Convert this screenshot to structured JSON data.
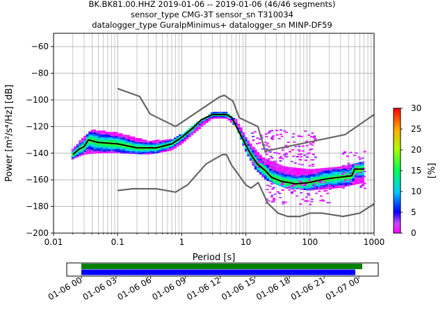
{
  "chart_data": {
    "type": "scatter",
    "title_lines": [
      "BK.BK81.00.HHZ   2019-01-06 -- 2019-01-06  (46/46 segments)",
      "sensor_type CMG-3T sensor_sn T310034",
      "datalogger_type GuralpMinimus+ datalogger_sn MINP-DF59"
    ],
    "xlabel": "Period [s]",
    "ylabel": "Power [m²/s⁴/Hz] [dB]",
    "x_scale": "log",
    "xlim": [
      0.01,
      1000
    ],
    "ylim": [
      -200,
      -50
    ],
    "x_ticks": [
      0.01,
      0.1,
      1,
      10,
      100,
      1000
    ],
    "x_tick_labels": [
      "0.01",
      "0.1",
      "1",
      "10",
      "100",
      "1000"
    ],
    "y_ticks": [
      -200,
      -180,
      -160,
      -140,
      -120,
      -100,
      -80,
      -60
    ],
    "y_tick_labels": [
      "−200",
      "−180",
      "−160",
      "−140",
      "−120",
      "−100",
      "−80",
      "−60"
    ],
    "grid": true,
    "colorbar": {
      "label": "[%]",
      "range": [
        0,
        30
      ],
      "ticks": [
        0,
        5,
        10,
        15,
        20,
        25,
        30
      ],
      "tick_labels": [
        "0",
        "5",
        "10",
        "15",
        "20",
        "25",
        "30"
      ]
    },
    "noise_model_high": [
      [
        0.1,
        -91.5
      ],
      [
        0.22,
        -97.4
      ],
      [
        0.32,
        -110.5
      ],
      [
        0.8,
        -120
      ],
      [
        3.8,
        -98
      ],
      [
        4.6,
        -96.5
      ],
      [
        6.3,
        -101
      ],
      [
        7.9,
        -113.5
      ],
      [
        15.4,
        -120
      ],
      [
        20,
        -138.5
      ],
      [
        354.8,
        -126
      ],
      [
        1000,
        -111
      ]
    ],
    "noise_model_low": [
      [
        0.1,
        -168
      ],
      [
        0.17,
        -166.7
      ],
      [
        0.4,
        -166.7
      ],
      [
        0.8,
        -169.2
      ],
      [
        1.24,
        -163.7
      ],
      [
        2.4,
        -148
      ],
      [
        4.3,
        -141.1
      ],
      [
        5,
        -141.1
      ],
      [
        6,
        -149
      ],
      [
        10,
        -163.8
      ],
      [
        12,
        -166.2
      ],
      [
        15.6,
        -162.1
      ],
      [
        21.9,
        -177.5
      ],
      [
        31.6,
        -185
      ],
      [
        45,
        -187.5
      ],
      [
        70,
        -187.5
      ],
      [
        101,
        -185
      ],
      [
        154,
        -185
      ],
      [
        328,
        -187.5
      ],
      [
        600,
        -185
      ],
      [
        1000,
        -178
      ]
    ],
    "mode_curve": [
      [
        0.02,
        -141
      ],
      [
        0.025,
        -137
      ],
      [
        0.03,
        -135
      ],
      [
        0.035,
        -130
      ],
      [
        0.05,
        -132
      ],
      [
        0.1,
        -133
      ],
      [
        0.2,
        -136
      ],
      [
        0.4,
        -136
      ],
      [
        0.7,
        -133
      ],
      [
        1.0,
        -128
      ],
      [
        1.5,
        -121
      ],
      [
        2.0,
        -115
      ],
      [
        3.0,
        -111
      ],
      [
        5.0,
        -111
      ],
      [
        6.0,
        -113
      ],
      [
        8.0,
        -125
      ],
      [
        10,
        -134
      ],
      [
        12,
        -141
      ],
      [
        15,
        -148
      ],
      [
        20,
        -153
      ],
      [
        25,
        -158
      ],
      [
        35,
        -161
      ],
      [
        60,
        -163
      ],
      [
        100,
        -162
      ],
      [
        150,
        -160
      ],
      [
        200,
        -159
      ],
      [
        300,
        -158
      ],
      [
        450,
        -157
      ],
      [
        500,
        -152
      ],
      [
        700,
        -152
      ]
    ],
    "density_band": {
      "upper": [
        [
          0.019,
          -138
        ],
        [
          0.03,
          -128
        ],
        [
          0.04,
          -123
        ],
        [
          0.1,
          -125
        ],
        [
          0.3,
          -131
        ],
        [
          0.7,
          -130
        ],
        [
          1.0,
          -126
        ],
        [
          1.5,
          -119
        ],
        [
          2.2,
          -114
        ],
        [
          3.0,
          -110
        ],
        [
          5.0,
          -109
        ],
        [
          7.0,
          -115
        ],
        [
          10,
          -128
        ],
        [
          14,
          -138
        ],
        [
          20,
          -145
        ],
        [
          40,
          -150
        ],
        [
          100,
          -153
        ],
        [
          300,
          -150
        ],
        [
          700,
          -146
        ]
      ],
      "lower": [
        [
          0.019,
          -145
        ],
        [
          0.03,
          -141
        ],
        [
          0.05,
          -140
        ],
        [
          0.1,
          -140
        ],
        [
          0.3,
          -141
        ],
        [
          0.7,
          -138
        ],
        [
          1.0,
          -133
        ],
        [
          1.5,
          -126
        ],
        [
          2.2,
          -119
        ],
        [
          3.0,
          -114
        ],
        [
          5.0,
          -114
        ],
        [
          7.0,
          -120
        ],
        [
          10,
          -139
        ],
        [
          14,
          -152
        ],
        [
          20,
          -160
        ],
        [
          40,
          -166
        ],
        [
          100,
          -168
        ],
        [
          300,
          -166
        ],
        [
          700,
          -162
        ]
      ]
    },
    "scatter_clusters": [
      {
        "x_min": 12,
        "x_max": 120,
        "y_min": -150,
        "y_max": -122,
        "count": 150
      },
      {
        "x_min": 20,
        "x_max": 200,
        "y_min": -178,
        "y_max": -160,
        "count": 90
      },
      {
        "x_min": 300,
        "x_max": 700,
        "y_min": -166,
        "y_max": -138,
        "count": 45
      }
    ],
    "timeline": {
      "tick_labels": [
        "01-06 00",
        "01-06 03",
        "01-06 06",
        "01-06 09",
        "01-06 12",
        "01-06 15",
        "01-06 18",
        "01-06 21",
        "01-07 00"
      ],
      "bars": [
        {
          "color": "#008000",
          "start_hour": 0,
          "end_hour": 24.3
        },
        {
          "color": "#0000ff",
          "start_hour": 0,
          "end_hour": 23.7
        }
      ]
    }
  },
  "colors": {
    "noise_model": "#666666",
    "mode": "#000000",
    "axis": "#000000",
    "grid": "#b0b0b0"
  }
}
